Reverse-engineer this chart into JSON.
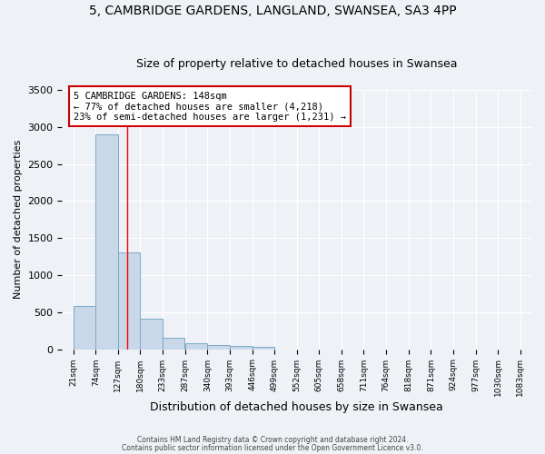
{
  "title1": "5, CAMBRIDGE GARDENS, LANGLAND, SWANSEA, SA3 4PP",
  "title2": "Size of property relative to detached houses in Swansea",
  "xlabel": "Distribution of detached houses by size in Swansea",
  "ylabel": "Number of detached properties",
  "bin_edges": [
    21,
    74,
    127,
    180,
    233,
    287,
    340,
    393,
    446,
    499,
    552,
    605,
    658,
    711,
    764,
    818,
    871,
    924,
    977,
    1030,
    1083
  ],
  "bar_heights": [
    580,
    2900,
    1310,
    410,
    155,
    80,
    55,
    45,
    30,
    0,
    0,
    0,
    0,
    0,
    0,
    0,
    0,
    0,
    0,
    0
  ],
  "bar_color": "#c8d8e8",
  "bar_edge_color": "#7aaac8",
  "red_line_x": 148,
  "annotation_line1": "5 CAMBRIDGE GARDENS: 148sqm",
  "annotation_line2": "← 77% of detached houses are smaller (4,218)",
  "annotation_line3": "23% of semi-detached houses are larger (1,231) →",
  "annotation_box_color": "#ffffff",
  "annotation_box_edge_color": "#cc0000",
  "footer1": "Contains HM Land Registry data © Crown copyright and database right 2024.",
  "footer2": "Contains public sector information licensed under the Open Government Licence v3.0.",
  "ylim": [
    0,
    3500
  ],
  "yticks": [
    0,
    500,
    1000,
    1500,
    2000,
    2500,
    3000,
    3500
  ],
  "title1_fontsize": 10,
  "title2_fontsize": 9,
  "bg_color": "#eef2f7",
  "plot_bg_color": "#eef2f7"
}
